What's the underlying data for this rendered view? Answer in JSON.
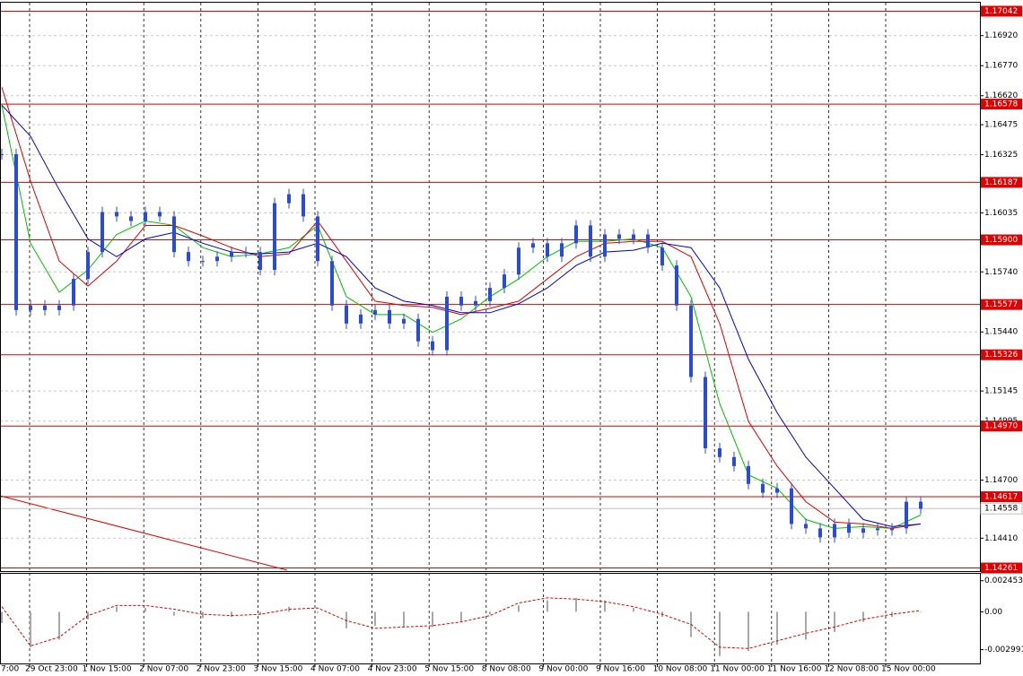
{
  "chart_data": [
    {
      "type": "candlestick",
      "color": "#2a4bd7",
      "grid": true,
      "ylim": [
        1.1425,
        1.1708
      ],
      "yticks": [
        {
          "value": 1.1692,
          "label": "1.16920"
        },
        {
          "value": 1.1677,
          "label": "1.16770"
        },
        {
          "value": 1.1662,
          "label": "1.16620"
        },
        {
          "value": 1.16475,
          "label": "1.16475"
        },
        {
          "value": 1.16325,
          "label": "1.16325"
        },
        {
          "value": 1.16035,
          "label": "1.16035"
        },
        {
          "value": 1.1574,
          "label": "1.15740"
        },
        {
          "value": 1.1544,
          "label": "1.15440"
        },
        {
          "value": 1.15145,
          "label": "1.15145"
        },
        {
          "value": 1.14995,
          "label": "1.14995"
        },
        {
          "value": 1.147,
          "label": "1.14700"
        },
        {
          "value": 1.1441,
          "label": "1.14410"
        }
      ],
      "x_labels": [
        "7:00",
        "29 Oct 23:00",
        "1 Nov 15:00",
        "2 Nov 07:00",
        "2 Nov 23:00",
        "3 Nov 15:00",
        "4 Nov 07:00",
        "4 Nov 23:00",
        "5 Nov 15:00",
        "8 Nov 08:00",
        "9 Nov 00:00",
        "9 Nov 16:00",
        "10 Nov 08:00",
        "11 Nov 00:00",
        "11 Nov 16:00",
        "12 Nov 08:00",
        "15 Nov 00:00"
      ],
      "values": [
        1.16328,
        1.15549,
        1.15572,
        1.15549,
        1.15572,
        1.15705,
        1.15839,
        1.16039,
        1.16017,
        1.15994,
        1.16039,
        1.16017,
        1.15839,
        1.15794,
        1.15794,
        1.15816,
        1.15839,
        1.15839,
        1.1575,
        1.16083,
        1.16128,
        1.16017,
        1.15794,
        1.15572,
        1.15482,
        1.15527,
        1.15549,
        1.15482,
        1.15505,
        1.15393,
        1.15349,
        1.15616,
        1.15572,
        1.15594,
        1.1566,
        1.15727,
        1.15861,
        1.15883,
        1.15816,
        1.15883,
        1.15972,
        1.15816,
        1.15927,
        1.15905,
        1.15927,
        1.15861,
        1.15772,
        1.15572,
        1.15215,
        1.14859,
        1.14815,
        1.1477,
        1.14681,
        1.14637,
        1.14659,
        1.14481,
        1.14459,
        1.14414,
        1.14481,
        1.14437,
        1.14459,
        1.1445,
        1.14459,
        1.14592,
        1.14557
      ],
      "moving_averages": [
        {
          "color": "#00c000",
          "values": [
            1.16573,
            1.15883,
            1.15638,
            1.1575,
            1.15927,
            1.15994,
            1.15972,
            1.15861,
            1.15816,
            1.1583,
            1.15861,
            1.15972,
            1.15616,
            1.15527,
            1.15527,
            1.15438,
            1.15505,
            1.15616,
            1.15705,
            1.15816,
            1.15892,
            1.15892,
            1.15905,
            1.15861,
            1.15616,
            1.15082,
            1.14726,
            1.14659,
            1.14503,
            1.14459,
            1.14468,
            1.14459,
            1.14526
          ]
        },
        {
          "color": "#e00000",
          "values": [
            1.16662,
            1.16194,
            1.15794,
            1.15669,
            1.15794,
            1.15972,
            1.15972,
            1.15919,
            1.15861,
            1.15816,
            1.1583,
            1.15994,
            1.15794,
            1.15594,
            1.15572,
            1.15563,
            1.15527,
            1.15558,
            1.15594,
            1.15705,
            1.15816,
            1.15883,
            1.15892,
            1.15892,
            1.15816,
            1.15482,
            1.14993,
            1.1477,
            1.14592,
            1.1449,
            1.14481,
            1.14459,
            1.14481
          ]
        },
        {
          "color": "#0000d0",
          "values": [
            1.16573,
            1.16417,
            1.1615,
            1.15905,
            1.15816,
            1.15905,
            1.15937,
            1.15883,
            1.15839,
            1.1583,
            1.15839,
            1.15883,
            1.15816,
            1.1566,
            1.15594,
            1.15572,
            1.15536,
            1.15536,
            1.15581,
            1.1566,
            1.15772,
            1.15839,
            1.15848,
            1.15883,
            1.15861,
            1.1566,
            1.15304,
            1.15037,
            1.14815,
            1.14659,
            1.14503,
            1.14468,
            1.14481
          ]
        }
      ],
      "levels": {
        "color": "#e00000",
        "items": [
          {
            "value": 1.17042,
            "label": "1.17042"
          },
          {
            "value": 1.16578,
            "label": "1.16578"
          },
          {
            "value": 1.16187,
            "label": "1.16187"
          },
          {
            "value": 1.159,
            "label": "1.15900"
          },
          {
            "value": 1.15577,
            "label": "1.15577"
          },
          {
            "value": 1.15326,
            "label": "1.15326"
          },
          {
            "value": 1.1497,
            "label": "1.14970"
          },
          {
            "value": 1.14617,
            "label": "1.14617"
          },
          {
            "value": 1.14261,
            "label": "1.14261"
          }
        ]
      },
      "current_price": {
        "value": 1.14558,
        "label": "1.14558"
      }
    },
    {
      "type": "macd",
      "ylim": [
        -0.00394,
        0.00286
      ],
      "yticks": [
        {
          "value": 0.002453,
          "label": "0.002453"
        },
        {
          "value": 0,
          "label": "0.00"
        },
        {
          "value": -0.002991,
          "label": "-0.002991"
        }
      ],
      "histogram": {
        "color": "#a8a8a8",
        "values": [
          -0.0009,
          -0.0028,
          -0.0022,
          -0.0006,
          0.0004,
          0.0003,
          -0.0003,
          -0.0005,
          -0.0004,
          -0.0002,
          0.0004,
          -0.0001,
          -0.0013,
          -0.0011,
          -0.0012,
          -0.0012,
          -0.0008,
          -0.0002,
          0.0005,
          0.0009,
          0.0011,
          0.0009,
          0.0003,
          -0.0004,
          -0.002,
          -0.0035,
          -0.0031,
          -0.0026,
          -0.0022,
          -0.0016,
          -0.0008,
          -0.0004,
          0
        ]
      },
      "signal": {
        "color": "#e00000",
        "values": [
          0.0004,
          -0.0027,
          -0.002,
          -0.0003,
          0.0005,
          0.0005,
          0.0002,
          -0.0002,
          -0.0003,
          -0.0002,
          0.0002,
          0.0003,
          -0.0007,
          -0.0013,
          -0.0012,
          -0.0011,
          -0.0008,
          -0.0003,
          0.0007,
          0.0011,
          0.001,
          0.0008,
          0.0004,
          -0.0002,
          -0.001,
          -0.0028,
          -0.0029,
          -0.0023,
          -0.0017,
          -0.0012,
          -0.0006,
          -0.0002,
          0.0001
        ]
      }
    }
  ]
}
